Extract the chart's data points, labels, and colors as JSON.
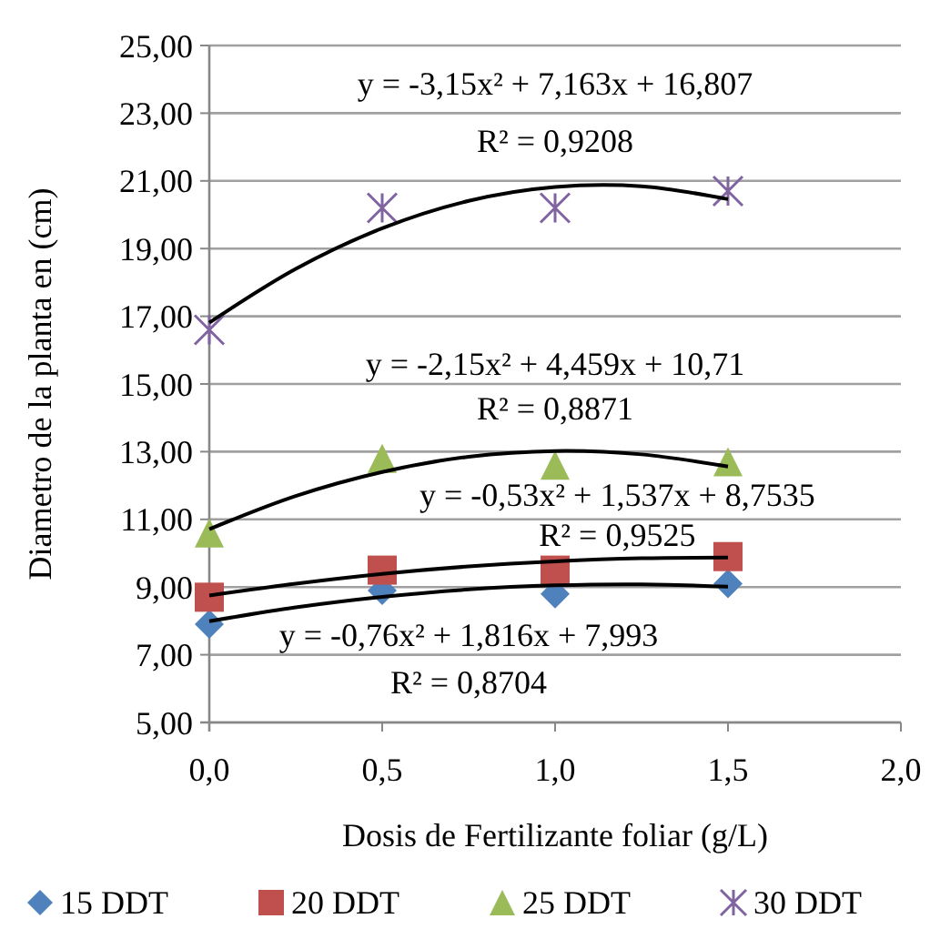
{
  "chart_data": {
    "type": "scatter",
    "xlabel": "Dosis de Fertilizante foliar (g/L)",
    "ylabel": "Diametro de la planta  en (cm)",
    "xlim": [
      0,
      2
    ],
    "xticks": [
      {
        "value": 0,
        "label": "0,0"
      },
      {
        "value": 0.5,
        "label": "0,5"
      },
      {
        "value": 1,
        "label": "1,0"
      },
      {
        "value": 1.5,
        "label": "1,5"
      },
      {
        "value": 2,
        "label": "2,0"
      }
    ],
    "ylim": [
      5,
      25
    ],
    "yticks": [
      {
        "value": 5,
        "label": "5,00"
      },
      {
        "value": 7,
        "label": "7,00"
      },
      {
        "value": 9,
        "label": "9,00"
      },
      {
        "value": 11,
        "label": "11,00"
      },
      {
        "value": 13,
        "label": "13,00"
      },
      {
        "value": 15,
        "label": "15,00"
      },
      {
        "value": 17,
        "label": "17,00"
      },
      {
        "value": 19,
        "label": "19,00"
      },
      {
        "value": 21,
        "label": "21,00"
      },
      {
        "value": 23,
        "label": "23,00"
      },
      {
        "value": 25,
        "label": "25,00"
      }
    ],
    "grid": "y",
    "legend": "bottom",
    "x": [
      0,
      0.5,
      1,
      1.5
    ],
    "series": [
      {
        "name": "15 DDT",
        "color": "#4f81bd",
        "marker": "diamond",
        "values": [
          7.9,
          8.9,
          8.8,
          9.1
        ]
      },
      {
        "name": "20 DDT",
        "color": "#c0504d",
        "marker": "square",
        "values": [
          8.7,
          9.5,
          9.5,
          9.9
        ]
      },
      {
        "name": "25 DDT",
        "color": "#9bbb59",
        "marker": "triangle",
        "values": [
          10.6,
          12.8,
          12.6,
          12.7
        ]
      },
      {
        "name": "30 DDT",
        "color": "#8064a2",
        "marker": "cross",
        "values": [
          16.6,
          20.2,
          20.2,
          20.7
        ]
      },
      {
        "type": "line",
        "color": "#000000",
        "marker": "none",
        "x": [
          0,
          0.25,
          0.5,
          0.75,
          1,
          1.25,
          1.5
        ],
        "values": [
          7.99,
          8.4,
          8.71,
          8.93,
          9.05,
          9.08,
          9.01
        ]
      },
      {
        "type": "line",
        "color": "#000000",
        "marker": "none",
        "x": [
          0,
          0.25,
          0.5,
          0.75,
          1,
          1.25,
          1.5
        ],
        "values": [
          8.75,
          9.1,
          9.39,
          9.61,
          9.76,
          9.85,
          9.87
        ]
      },
      {
        "type": "line",
        "color": "#000000",
        "marker": "none",
        "x": [
          0,
          0.25,
          0.5,
          0.75,
          1,
          1.25,
          1.5
        ],
        "values": [
          10.71,
          11.69,
          12.4,
          12.85,
          13.02,
          12.92,
          12.56
        ]
      },
      {
        "type": "line",
        "color": "#000000",
        "marker": "none",
        "x": [
          0,
          0.25,
          0.5,
          0.75,
          1,
          1.25,
          1.5
        ],
        "values": [
          16.81,
          18.4,
          19.6,
          20.41,
          20.82,
          20.84,
          20.46
        ]
      }
    ],
    "annotations": [
      "y = -3,15x² + 7,163x + 16,807",
      "R² = 0,9208",
      "y = -2,15x² + 4,459x + 10,71",
      "R² = 0,8871",
      "y = -0,53x² + 1,537x + 8,7535",
      "R² = 0,9525",
      "y = -0,76x² + 1,816x + 7,993",
      "R² = 0,8704"
    ]
  }
}
